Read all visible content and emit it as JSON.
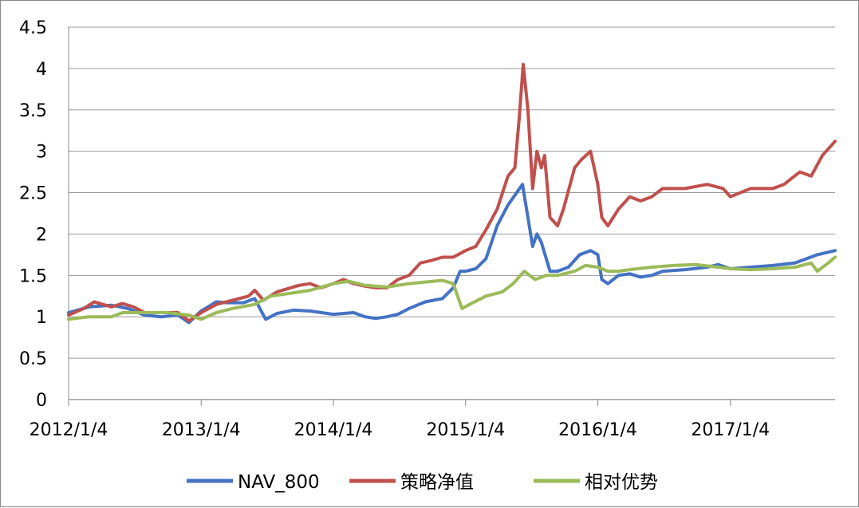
{
  "chart_data": {
    "type": "line",
    "title": "",
    "xlabel": "",
    "ylabel": "",
    "ylim": [
      0,
      4.5
    ],
    "yticks": [
      "0",
      "0.5",
      "1",
      "1.5",
      "2",
      "2.5",
      "3",
      "3.5",
      "4",
      "4.5"
    ],
    "xticks": [
      "2012/1/4",
      "2013/1/4",
      "2014/1/4",
      "2015/1/4",
      "2016/1/4",
      "2017/1/4"
    ],
    "xlim": [
      "2012/1/4",
      "2017/10/20"
    ],
    "grid": "horizontal",
    "legend_position": "bottom",
    "series": [
      {
        "name": "NAV_800",
        "color": "#4472C4",
        "points": [
          [
            "2012/1/4",
            1.05
          ],
          [
            "2012/3/1",
            1.12
          ],
          [
            "2012/5/1",
            1.14
          ],
          [
            "2012/6/15",
            1.1
          ],
          [
            "2012/8/1",
            1.02
          ],
          [
            "2012/9/15",
            1.0
          ],
          [
            "2012/11/1",
            1.02
          ],
          [
            "2012/12/1",
            0.93
          ],
          [
            "2013/1/4",
            1.07
          ],
          [
            "2013/2/15",
            1.18
          ],
          [
            "2013/3/15",
            1.17
          ],
          [
            "2013/5/1",
            1.17
          ],
          [
            "2013/6/1",
            1.22
          ],
          [
            "2013/6/15",
            1.1
          ],
          [
            "2013/7/1",
            0.97
          ],
          [
            "2013/8/1",
            1.04
          ],
          [
            "2013/9/15",
            1.08
          ],
          [
            "2013/11/1",
            1.07
          ],
          [
            "2014/1/4",
            1.03
          ],
          [
            "2014/3/1",
            1.05
          ],
          [
            "2014/4/1",
            1.0
          ],
          [
            "2014/5/1",
            0.98
          ],
          [
            "2014/6/1",
            1.0
          ],
          [
            "2014/7/1",
            1.03
          ],
          [
            "2014/8/1",
            1.1
          ],
          [
            "2014/9/15",
            1.18
          ],
          [
            "2014/11/1",
            1.22
          ],
          [
            "2014/12/1",
            1.35
          ],
          [
            "2014/12/20",
            1.55
          ],
          [
            "2015/1/4",
            1.55
          ],
          [
            "2015/2/1",
            1.58
          ],
          [
            "2015/3/1",
            1.7
          ],
          [
            "2015/4/1",
            2.1
          ],
          [
            "2015/5/1",
            2.35
          ],
          [
            "2015/6/10",
            2.6
          ],
          [
            "2015/6/25",
            2.2
          ],
          [
            "2015/7/8",
            1.85
          ],
          [
            "2015/7/20",
            2.0
          ],
          [
            "2015/8/1",
            1.9
          ],
          [
            "2015/8/25",
            1.55
          ],
          [
            "2015/9/15",
            1.55
          ],
          [
            "2015/10/15",
            1.6
          ],
          [
            "2015/11/15",
            1.75
          ],
          [
            "2015/12/15",
            1.8
          ],
          [
            "2016/1/4",
            1.75
          ],
          [
            "2016/1/15",
            1.45
          ],
          [
            "2016/2/1",
            1.4
          ],
          [
            "2016/3/1",
            1.5
          ],
          [
            "2016/4/1",
            1.52
          ],
          [
            "2016/5/1",
            1.48
          ],
          [
            "2016/6/1",
            1.5
          ],
          [
            "2016/7/1",
            1.55
          ],
          [
            "2016/9/1",
            1.57
          ],
          [
            "2016/11/1",
            1.6
          ],
          [
            "2016/12/1",
            1.63
          ],
          [
            "2017/1/4",
            1.58
          ],
          [
            "2017/3/1",
            1.6
          ],
          [
            "2017/5/1",
            1.62
          ],
          [
            "2017/7/1",
            1.65
          ],
          [
            "2017/9/1",
            1.75
          ],
          [
            "2017/10/20",
            1.8
          ]
        ]
      },
      {
        "name": "策略净值",
        "color": "#C0504D",
        "points": [
          [
            "2012/1/4",
            1.02
          ],
          [
            "2012/2/15",
            1.1
          ],
          [
            "2012/3/15",
            1.18
          ],
          [
            "2012/5/1",
            1.12
          ],
          [
            "2012/6/1",
            1.16
          ],
          [
            "2012/7/1",
            1.12
          ],
          [
            "2012/8/1",
            1.05
          ],
          [
            "2012/9/15",
            1.05
          ],
          [
            "2012/11/1",
            1.05
          ],
          [
            "2012/12/1",
            0.95
          ],
          [
            "2013/1/4",
            1.05
          ],
          [
            "2013/2/15",
            1.15
          ],
          [
            "2013/4/1",
            1.2
          ],
          [
            "2013/5/15",
            1.25
          ],
          [
            "2013/6/1",
            1.32
          ],
          [
            "2013/6/25",
            1.2
          ],
          [
            "2013/8/1",
            1.3
          ],
          [
            "2013/10/1",
            1.38
          ],
          [
            "2013/11/1",
            1.4
          ],
          [
            "2013/12/1",
            1.35
          ],
          [
            "2014/1/4",
            1.4
          ],
          [
            "2014/2/1",
            1.45
          ],
          [
            "2014/3/1",
            1.4
          ],
          [
            "2014/4/1",
            1.37
          ],
          [
            "2014/5/1",
            1.35
          ],
          [
            "2014/6/1",
            1.35
          ],
          [
            "2014/7/1",
            1.45
          ],
          [
            "2014/8/1",
            1.5
          ],
          [
            "2014/9/1",
            1.65
          ],
          [
            "2014/10/1",
            1.68
          ],
          [
            "2014/11/1",
            1.72
          ],
          [
            "2014/12/1",
            1.72
          ],
          [
            "2015/1/4",
            1.8
          ],
          [
            "2015/2/1",
            1.85
          ],
          [
            "2015/3/1",
            2.05
          ],
          [
            "2015/4/1",
            2.3
          ],
          [
            "2015/5/1",
            2.7
          ],
          [
            "2015/5/20",
            2.8
          ],
          [
            "2015/6/1",
            3.4
          ],
          [
            "2015/6/12",
            4.05
          ],
          [
            "2015/6/25",
            3.5
          ],
          [
            "2015/7/8",
            2.55
          ],
          [
            "2015/7/20",
            3.0
          ],
          [
            "2015/8/1",
            2.8
          ],
          [
            "2015/8/10",
            2.95
          ],
          [
            "2015/8/25",
            2.2
          ],
          [
            "2015/9/15",
            2.1
          ],
          [
            "2015/10/1",
            2.3
          ],
          [
            "2015/11/1",
            2.8
          ],
          [
            "2015/11/20",
            2.9
          ],
          [
            "2015/12/15",
            3.0
          ],
          [
            "2016/1/4",
            2.6
          ],
          [
            "2016/1/15",
            2.2
          ],
          [
            "2016/2/1",
            2.1
          ],
          [
            "2016/3/1",
            2.3
          ],
          [
            "2016/4/1",
            2.45
          ],
          [
            "2016/5/1",
            2.4
          ],
          [
            "2016/6/1",
            2.45
          ],
          [
            "2016/7/1",
            2.55
          ],
          [
            "2016/9/1",
            2.55
          ],
          [
            "2016/11/1",
            2.6
          ],
          [
            "2016/12/15",
            2.55
          ],
          [
            "2017/1/4",
            2.45
          ],
          [
            "2017/3/1",
            2.55
          ],
          [
            "2017/5/1",
            2.55
          ],
          [
            "2017/6/1",
            2.6
          ],
          [
            "2017/7/15",
            2.75
          ],
          [
            "2017/8/15",
            2.7
          ],
          [
            "2017/9/15",
            2.95
          ],
          [
            "2017/10/20",
            3.12
          ]
        ]
      },
      {
        "name": "相对优势",
        "color": "#9BBB59",
        "points": [
          [
            "2012/1/4",
            0.97
          ],
          [
            "2012/3/1",
            1.0
          ],
          [
            "2012/5/1",
            1.0
          ],
          [
            "2012/6/1",
            1.05
          ],
          [
            "2012/8/1",
            1.05
          ],
          [
            "2012/10/1",
            1.05
          ],
          [
            "2012/12/1",
            1.02
          ],
          [
            "2013/1/4",
            0.97
          ],
          [
            "2013/2/15",
            1.05
          ],
          [
            "2013/4/1",
            1.1
          ],
          [
            "2013/6/1",
            1.15
          ],
          [
            "2013/7/15",
            1.25
          ],
          [
            "2013/9/1",
            1.28
          ],
          [
            "2013/11/1",
            1.32
          ],
          [
            "2014/1/4",
            1.4
          ],
          [
            "2014/2/15",
            1.43
          ],
          [
            "2014/4/1",
            1.38
          ],
          [
            "2014/6/1",
            1.36
          ],
          [
            "2014/7/1",
            1.38
          ],
          [
            "2014/8/1",
            1.4
          ],
          [
            "2014/9/15",
            1.42
          ],
          [
            "2014/11/1",
            1.44
          ],
          [
            "2014/12/1",
            1.4
          ],
          [
            "2014/12/25",
            1.1
          ],
          [
            "2015/1/15",
            1.15
          ],
          [
            "2015/3/1",
            1.25
          ],
          [
            "2015/4/15",
            1.3
          ],
          [
            "2015/5/15",
            1.4
          ],
          [
            "2015/6/15",
            1.55
          ],
          [
            "2015/7/15",
            1.45
          ],
          [
            "2015/8/15",
            1.5
          ],
          [
            "2015/9/15",
            1.5
          ],
          [
            "2015/11/1",
            1.55
          ],
          [
            "2015/12/1",
            1.62
          ],
          [
            "2016/1/4",
            1.6
          ],
          [
            "2016/2/1",
            1.55
          ],
          [
            "2016/3/1",
            1.55
          ],
          [
            "2016/4/1",
            1.57
          ],
          [
            "2016/6/1",
            1.6
          ],
          [
            "2016/8/1",
            1.62
          ],
          [
            "2016/10/1",
            1.63
          ],
          [
            "2016/12/1",
            1.6
          ],
          [
            "2017/1/4",
            1.58
          ],
          [
            "2017/3/1",
            1.57
          ],
          [
            "2017/5/1",
            1.58
          ],
          [
            "2017/7/1",
            1.6
          ],
          [
            "2017/8/15",
            1.65
          ],
          [
            "2017/9/1",
            1.55
          ],
          [
            "2017/10/1",
            1.65
          ],
          [
            "2017/10/20",
            1.72
          ]
        ]
      }
    ]
  }
}
